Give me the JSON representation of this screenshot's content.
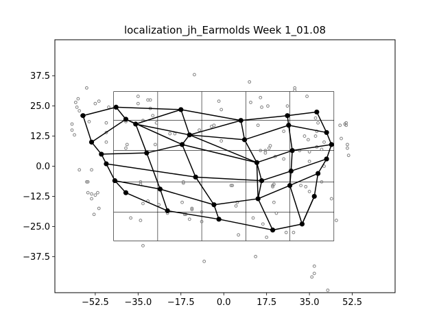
{
  "chart_data": {
    "type": "scatter",
    "title": "localization_jh_Earmolds Week 1_01.08",
    "xlabel": "",
    "ylabel": "",
    "xlim": [
      -69,
      70
    ],
    "ylim": [
      -52.5,
      52.5
    ],
    "xticks": [
      -52.5,
      -35.0,
      -17.5,
      0.0,
      17.5,
      35.0,
      52.5
    ],
    "xtick_labels": [
      "−52.5",
      "−35.0",
      "−17.5",
      "0.0",
      "17.5",
      "35.0",
      "52.5"
    ],
    "yticks": [
      37.5,
      25.0,
      12.5,
      0.0,
      -12.5,
      -25.0,
      -37.5
    ],
    "ytick_labels": [
      "37.5",
      "25.0",
      "12.5",
      "0.0",
      "−12.5",
      "−25.0",
      "−37.5"
    ],
    "grid": {
      "x_lines": [
        -45,
        -27,
        -9,
        9,
        27,
        45
      ],
      "y_lines": [
        31,
        19,
        6.5,
        -6.5,
        -19,
        -31
      ],
      "x_range": [
        -45,
        45
      ],
      "y_range": [
        -31,
        31
      ]
    },
    "colors": {
      "response_points": "#7f7f7f",
      "mesh": "#000000"
    },
    "responses": [
      [
        -62,
        17.5
      ],
      [
        -62,
        15
      ],
      [
        -61,
        13
      ],
      [
        -60.5,
        26.5
      ],
      [
        -60,
        24.5
      ],
      [
        -59.5,
        28
      ],
      [
        -59,
        23
      ],
      [
        -58,
        21
      ],
      [
        -56,
        32.5
      ],
      [
        -55,
        18.5
      ],
      [
        -59,
        -1.5
      ],
      [
        -56,
        -6.5
      ],
      [
        -55.5,
        -6.5
      ],
      [
        -55.5,
        -11
      ],
      [
        -54,
        -11.5
      ],
      [
        -54,
        -1.5
      ],
      [
        -54,
        -13.5
      ],
      [
        -53,
        -20
      ],
      [
        -52.5,
        -12
      ],
      [
        -51,
        27
      ],
      [
        -52.5,
        26
      ],
      [
        -51.5,
        -11
      ],
      [
        -51,
        -17.5
      ],
      [
        -48,
        14
      ],
      [
        -48,
        10
      ],
      [
        -48,
        18
      ],
      [
        -47,
        24.5
      ],
      [
        -40,
        7.5
      ],
      [
        -39.5,
        9
      ],
      [
        -40,
        18.5
      ],
      [
        -38,
        -21.5
      ],
      [
        -35,
        26
      ],
      [
        -35,
        29
      ],
      [
        -34,
        -6.5
      ],
      [
        -34,
        -7.5
      ],
      [
        -34,
        -22.5
      ],
      [
        -33,
        19
      ],
      [
        -33,
        -15.5
      ],
      [
        -33,
        -33
      ],
      [
        -31,
        27.5
      ],
      [
        -30,
        27.5
      ],
      [
        -30,
        24
      ],
      [
        -31,
        -14.5
      ],
      [
        -29,
        21
      ],
      [
        -28,
        9
      ],
      [
        -27.5,
        18
      ],
      [
        -26.5,
        -16
      ],
      [
        -23,
        -19.5
      ],
      [
        -22,
        13.5
      ],
      [
        -20,
        13.5
      ],
      [
        -17,
        -15
      ],
      [
        -16.5,
        -6.5
      ],
      [
        -16.5,
        -7
      ],
      [
        -16,
        -20
      ],
      [
        -15.5,
        -20
      ],
      [
        -14,
        -22
      ],
      [
        -13,
        -17.5
      ],
      [
        -13,
        -18
      ],
      [
        -12,
        38
      ],
      [
        -10,
        15
      ],
      [
        -9,
        -19
      ],
      [
        -9,
        -23
      ],
      [
        -8,
        -39.5
      ],
      [
        -5,
        16.5
      ],
      [
        -4,
        17
      ],
      [
        -2,
        27
      ],
      [
        -1,
        10.5
      ],
      [
        -1,
        23.5
      ],
      [
        3,
        -8
      ],
      [
        3.5,
        -8
      ],
      [
        5,
        -16.5
      ],
      [
        5.5,
        -15
      ],
      [
        6,
        -28.5
      ],
      [
        10.5,
        35
      ],
      [
        11,
        26.5
      ],
      [
        12,
        -21.5
      ],
      [
        13,
        -37.5
      ],
      [
        14,
        17
      ],
      [
        15,
        6.5
      ],
      [
        15,
        28.5
      ],
      [
        15.5,
        24.5
      ],
      [
        16,
        -24
      ],
      [
        17,
        5.5
      ],
      [
        17,
        6.5
      ],
      [
        17.5,
        -29.5
      ],
      [
        18,
        25
      ],
      [
        18.5,
        7.5
      ],
      [
        19,
        8.5
      ],
      [
        20,
        -8
      ],
      [
        20,
        -8.5
      ],
      [
        20.5,
        -7.5
      ],
      [
        20.5,
        -15
      ],
      [
        21,
        4
      ],
      [
        21.5,
        -19.5
      ],
      [
        24.5,
        14.5
      ],
      [
        24.5,
        3
      ],
      [
        25.5,
        -27.5
      ],
      [
        26,
        25
      ],
      [
        28.5,
        -27.5
      ],
      [
        29,
        31.5
      ],
      [
        29,
        32.5
      ],
      [
        31,
        6.5
      ],
      [
        31.5,
        -8
      ],
      [
        33,
        12.5
      ],
      [
        33.5,
        -8.5
      ],
      [
        34,
        29
      ],
      [
        34.5,
        11
      ],
      [
        35,
        6
      ],
      [
        35,
        2
      ],
      [
        35,
        -10.5
      ],
      [
        36,
        -46
      ],
      [
        37,
        -41.5
      ],
      [
        37,
        -44.5
      ],
      [
        37.5,
        12.5
      ],
      [
        37.5,
        20
      ],
      [
        38,
        8
      ],
      [
        38,
        14.5
      ],
      [
        38.5,
        18
      ],
      [
        40,
        7
      ],
      [
        40,
        -6.5
      ],
      [
        41,
        0
      ],
      [
        41,
        10
      ],
      [
        42.5,
        -51.5
      ],
      [
        44,
        -13.5
      ],
      [
        46,
        -22.5
      ],
      [
        47.5,
        17
      ],
      [
        48,
        11.5
      ],
      [
        49.5,
        17.5
      ],
      [
        50,
        18
      ],
      [
        50,
        17
      ],
      [
        50.5,
        9
      ],
      [
        50.5,
        7.5
      ],
      [
        51,
        4.5
      ]
    ],
    "mesh_nodes": [
      [
        -57.5,
        21
      ],
      [
        -44,
        24.5
      ],
      [
        -17.5,
        23.5
      ],
      [
        7,
        19
      ],
      [
        26,
        21
      ],
      [
        38,
        22.5
      ],
      [
        -54,
        10
      ],
      [
        -40,
        19.5
      ],
      [
        -36,
        17.5
      ],
      [
        -14,
        13
      ],
      [
        8.5,
        11
      ],
      [
        26.5,
        17
      ],
      [
        42,
        14
      ],
      [
        -50,
        5
      ],
      [
        -31.5,
        5.5
      ],
      [
        -17,
        9
      ],
      [
        13.5,
        1.5
      ],
      [
        28,
        6.5
      ],
      [
        44,
        9
      ],
      [
        -48,
        1
      ],
      [
        -11.5,
        -4.5
      ],
      [
        15.5,
        -6
      ],
      [
        27.5,
        -2
      ],
      [
        42,
        3
      ],
      [
        -44.5,
        -6
      ],
      [
        -26,
        -9.5
      ],
      [
        -4,
        -16
      ],
      [
        14,
        -13.5
      ],
      [
        27,
        -8
      ],
      [
        38.5,
        -3
      ],
      [
        -40,
        -11
      ],
      [
        -23,
        -18.5
      ],
      [
        -2,
        -22
      ],
      [
        20,
        -26.5
      ],
      [
        32,
        -24
      ],
      [
        37,
        -12.5
      ]
    ],
    "mesh_edges": [
      [
        0,
        1
      ],
      [
        1,
        2
      ],
      [
        2,
        3
      ],
      [
        3,
        4
      ],
      [
        4,
        5
      ],
      [
        6,
        7
      ],
      [
        7,
        8
      ],
      [
        8,
        9
      ],
      [
        9,
        10
      ],
      [
        10,
        11
      ],
      [
        11,
        12
      ],
      [
        13,
        14
      ],
      [
        14,
        15
      ],
      [
        15,
        16
      ],
      [
        16,
        17
      ],
      [
        17,
        18
      ],
      [
        19,
        24
      ],
      [
        24,
        25
      ],
      [
        25,
        26
      ],
      [
        26,
        27
      ],
      [
        27,
        28
      ],
      [
        28,
        29
      ],
      [
        30,
        31
      ],
      [
        31,
        32
      ],
      [
        32,
        33
      ],
      [
        33,
        34
      ],
      [
        34,
        35
      ],
      [
        1,
        7
      ],
      [
        8,
        2
      ],
      [
        9,
        2
      ],
      [
        10,
        3
      ],
      [
        11,
        4
      ],
      [
        12,
        5
      ],
      [
        0,
        6
      ],
      [
        6,
        13
      ],
      [
        13,
        19
      ],
      [
        7,
        15
      ],
      [
        8,
        14
      ],
      [
        14,
        25
      ],
      [
        25,
        31
      ],
      [
        24,
        30
      ],
      [
        15,
        9
      ],
      [
        15,
        20
      ],
      [
        20,
        26
      ],
      [
        26,
        32
      ],
      [
        10,
        16
      ],
      [
        16,
        21
      ],
      [
        21,
        27
      ],
      [
        27,
        33
      ],
      [
        11,
        17
      ],
      [
        17,
        22
      ],
      [
        22,
        28
      ],
      [
        28,
        34
      ],
      [
        34,
        35
      ],
      [
        12,
        18
      ],
      [
        18,
        23
      ],
      [
        23,
        29
      ],
      [
        29,
        35
      ],
      [
        19,
        20
      ],
      [
        20,
        21
      ],
      [
        21,
        22
      ],
      [
        22,
        23
      ],
      [
        3,
        9
      ],
      [
        9,
        16
      ],
      [
        16,
        27
      ]
    ]
  }
}
